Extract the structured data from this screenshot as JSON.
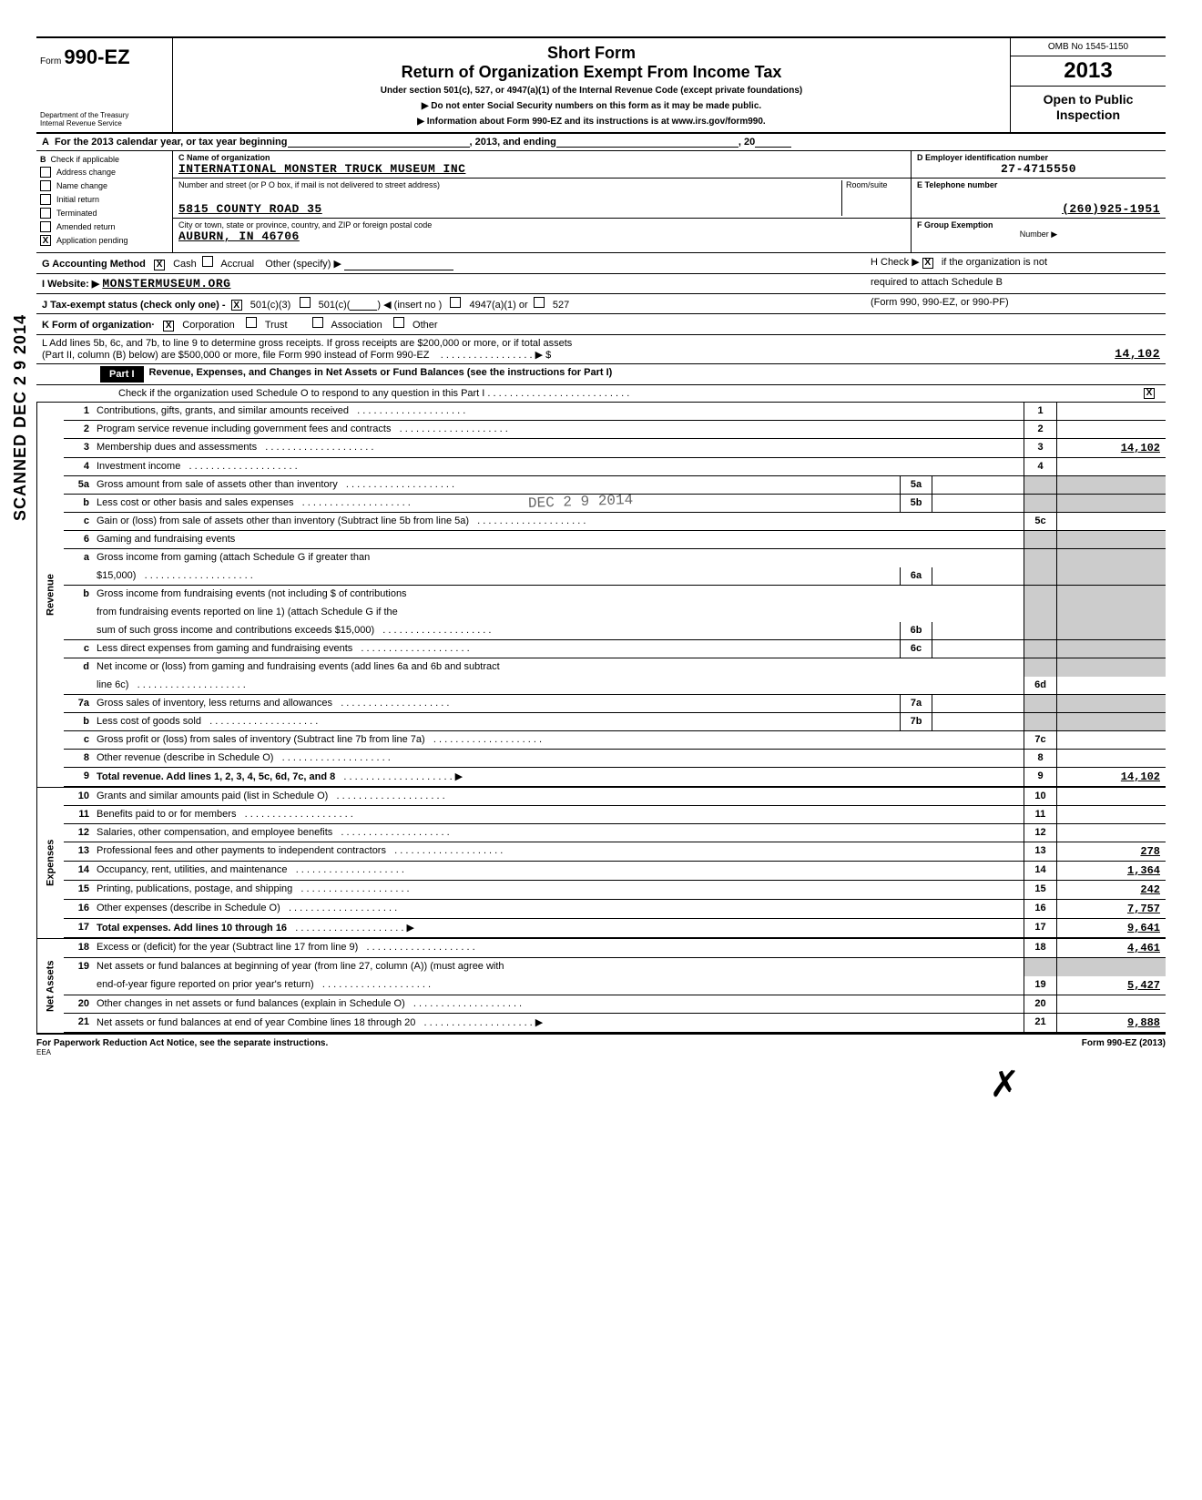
{
  "header": {
    "form_label": "Form",
    "form_number": "990-EZ",
    "short_form": "Short Form",
    "title": "Return of Organization Exempt From Income Tax",
    "subtitle": "Under section 501(c), 527, or 4947(a)(1) of the Internal Revenue Code (except private foundations)",
    "arrow1": "▶  Do not enter Social Security numbers on this form as it may be made public.",
    "arrow2": "▶  Information about Form 990-EZ and its instructions is at www.irs.gov/form990.",
    "dept1": "Department of the Treasury",
    "dept2": "Internal Revenue Service",
    "omb": "OMB No  1545-1150",
    "year": "2013",
    "open": "Open to Public Inspection"
  },
  "row_a": {
    "label_a": "A",
    "text1": "For the 2013 calendar year, or tax year beginning",
    "text2": ", 2013, and ending",
    "text3": ", 20"
  },
  "section_b": {
    "label": "B",
    "hdr": "Check if applicable",
    "items": [
      "Address change",
      "Name change",
      "Initial return",
      "Terminated",
      "Amended return",
      "Application pending"
    ],
    "checked_index": 5
  },
  "section_c": {
    "c_label": "C  Name of organization",
    "org_name": "INTERNATIONAL MONSTER TRUCK MUSEUM INC",
    "addr_label": "Number and street (or P O  box, if mail is not delivered to street address)",
    "room_label": "Room/suite",
    "street": "5815 COUNTY ROAD 35",
    "city_label": "City or town, state or province, country, and ZIP or foreign postal code",
    "city": "AUBURN, IN 46706"
  },
  "section_def": {
    "d_label": "D  Employer identification number",
    "ein": "27-4715550",
    "e_label": "E  Telephone number",
    "phone": "(260)925-1951",
    "f_label": "F  Group Exemption",
    "f_sub": "Number  ▶"
  },
  "row_g": {
    "g": "G   Accounting Method",
    "cash": "Cash",
    "accrual": "Accrual",
    "other": "Other (specify) ▶",
    "h": "H  Check ▶",
    "h_txt": "if the organization is not",
    "h_sub": "required to attach Schedule B",
    "h_sub2": "(Form 990, 990-EZ, or 990-PF)"
  },
  "row_i": {
    "label": "I     Website: ▶",
    "value": "MONSTERMUSEUM.ORG"
  },
  "row_j": {
    "label": "J   Tax-exempt status (check only one) -",
    "c3": "501(c)(3)",
    "c": "501(c)(",
    "insert": ")  ◀ (insert no )",
    "a1": "4947(a)(1) or",
    "527": "527"
  },
  "row_k": {
    "label": "K  Form of organization·",
    "corp": "Corporation",
    "trust": "Trust",
    "assoc": "Association",
    "other": "Other"
  },
  "row_l": {
    "l1": "L  Add lines 5b, 6c, and 7b, to line 9 to determine gross receipts. If gross receipts are $200,000 or more, or if total assets",
    "l2": "(Part II, column (B) below) are $500,000 or more, file Form 990 instead of Form 990-EZ",
    "dots": ". . . . . . . . . . . . . . . . . ▶ $",
    "amt": "14,102"
  },
  "part1": {
    "label": "Part I",
    "title": "Revenue, Expenses, and Changes in Net Assets or Fund Balances (see the instructions for Part I)",
    "check_o": "Check if the organization used Schedule O to respond to any question in this Part I   . . . . . . . . . . . . . . . . . . . . . . . . . .",
    "check_o_checked": true
  },
  "stamp_side": "SCANNED DEC 2 9 2014",
  "rec_stamp": "DEC 2 9 2014",
  "sections": {
    "revenue": "Revenue",
    "expenses": "Expenses",
    "netassets": "Net Assets"
  },
  "lines": [
    {
      "n": "1",
      "txt": "Contributions, gifts, grants, and similar amounts received",
      "box": "1",
      "amt": ""
    },
    {
      "n": "2",
      "txt": "Program service revenue including government fees and contracts",
      "box": "2",
      "amt": ""
    },
    {
      "n": "3",
      "txt": "Membership dues and assessments",
      "box": "3",
      "amt": "14,102"
    },
    {
      "n": "4",
      "txt": "Investment income",
      "box": "4",
      "amt": ""
    },
    {
      "n": "5a",
      "txt": "Gross amount from sale of assets other than inventory",
      "inner": "5a",
      "shaded_right": true
    },
    {
      "n": "b",
      "txt": "Less  cost or other basis and sales expenses",
      "inner": "5b",
      "shaded_right": true
    },
    {
      "n": "c",
      "txt": "Gain or (loss) from sale of assets other than inventory (Subtract line 5b from line 5a)",
      "box": "5c",
      "amt": ""
    },
    {
      "n": "6",
      "txt": "Gaming and fundraising events",
      "shaded_all": true
    },
    {
      "n": "a",
      "txt": "Gross income from gaming (attach Schedule G if greater than",
      "cont": true,
      "shaded_right": true
    },
    {
      "n": "",
      "txt": "$15,000)",
      "inner": "6a",
      "shaded_right": true
    },
    {
      "n": "b",
      "txt": "Gross income from fundraising events (not including $                                  of contributions",
      "cont": true,
      "shaded_right": true
    },
    {
      "n": "",
      "txt": "from fundraising events reported on line 1) (attach Schedule G if the",
      "cont": true,
      "shaded_right": true
    },
    {
      "n": "",
      "txt": "sum of such gross income and contributions exceeds $15,000)",
      "inner": "6b",
      "shaded_right": true
    },
    {
      "n": "c",
      "txt": "Less  direct expenses from gaming and fundraising events",
      "inner": "6c",
      "shaded_right": true
    },
    {
      "n": "d",
      "txt": "Net income or (loss) from gaming and fundraising events (add lines 6a and 6b and subtract",
      "cont": true,
      "shaded_right": true
    },
    {
      "n": "",
      "txt": "line 6c)",
      "box": "6d",
      "amt": ""
    },
    {
      "n": "7a",
      "txt": "Gross sales of inventory, less returns and allowances",
      "inner": "7a",
      "shaded_right": true
    },
    {
      "n": "b",
      "txt": "Less  cost of goods sold",
      "inner": "7b",
      "shaded_right": true
    },
    {
      "n": "c",
      "txt": "Gross profit or (loss) from sales of inventory (Subtract line 7b from line 7a)",
      "box": "7c",
      "amt": ""
    },
    {
      "n": "8",
      "txt": "Other revenue (describe in Schedule O)",
      "box": "8",
      "amt": ""
    },
    {
      "n": "9",
      "txt": "Total revenue.  Add lines 1, 2, 3, 4, 5c, 6d, 7c, and 8",
      "box": "9",
      "amt": "14,102",
      "bold": true,
      "arrow": true
    }
  ],
  "exp_lines": [
    {
      "n": "10",
      "txt": "Grants and similar amounts paid (list in Schedule O)",
      "box": "10",
      "amt": ""
    },
    {
      "n": "11",
      "txt": "Benefits paid to or for members",
      "box": "11",
      "amt": ""
    },
    {
      "n": "12",
      "txt": "Salaries, other compensation, and employee benefits",
      "box": "12",
      "amt": ""
    },
    {
      "n": "13",
      "txt": "Professional fees and other payments to independent contractors",
      "box": "13",
      "amt": "278"
    },
    {
      "n": "14",
      "txt": "Occupancy, rent, utilities, and maintenance",
      "box": "14",
      "amt": "1,364"
    },
    {
      "n": "15",
      "txt": "Printing, publications, postage, and shipping",
      "box": "15",
      "amt": "242"
    },
    {
      "n": "16",
      "txt": "Other expenses (describe in Schedule O)",
      "box": "16",
      "amt": "7,757"
    },
    {
      "n": "17",
      "txt": "Total expenses.  Add lines 10 through 16",
      "box": "17",
      "amt": "9,641",
      "bold": true,
      "arrow": true
    }
  ],
  "na_lines": [
    {
      "n": "18",
      "txt": "Excess or (deficit) for the year (Subtract line 17 from line 9)",
      "box": "18",
      "amt": "4,461"
    },
    {
      "n": "19",
      "txt": "Net assets or fund balances at beginning of year (from line 27, column (A)) (must agree with",
      "cont": true,
      "shaded_right": true
    },
    {
      "n": "",
      "txt": "end-of-year figure reported on prior year's return)",
      "box": "19",
      "amt": "5,427"
    },
    {
      "n": "20",
      "txt": "Other changes in net assets or fund balances (explain in Schedule O)",
      "box": "20",
      "amt": ""
    },
    {
      "n": "21",
      "txt": "Net assets or fund balances at end of year  Combine lines 18 through 20",
      "box": "21",
      "amt": "9,888",
      "arrow": true
    }
  ],
  "footer": {
    "left": "For Paperwork Reduction Act Notice, see the separate instructions.",
    "eea": "EEA",
    "right": "Form 990-EZ (2013)"
  }
}
